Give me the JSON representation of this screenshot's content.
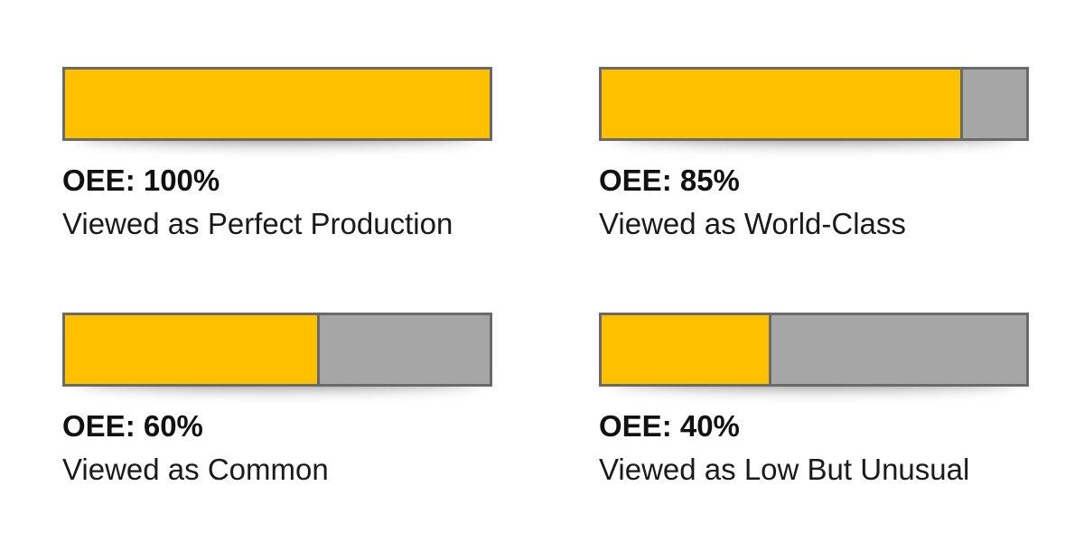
{
  "colors": {
    "fill": "#ffc000",
    "remainder": "#a6a6a6",
    "border": "#6a6a6a"
  },
  "chart_data": {
    "type": "bar",
    "orientation": "horizontal-progress",
    "items": [
      {
        "oee_label": "OEE: 100%",
        "description": "Viewed as Perfect Production",
        "value": 100
      },
      {
        "oee_label": "OEE: 85%",
        "description": "Viewed as World-Class",
        "value": 85
      },
      {
        "oee_label": "OEE: 60%",
        "description": "Viewed as Common",
        "value": 60
      },
      {
        "oee_label": "OEE: 40%",
        "description": "Viewed as Low But Unusual",
        "value": 40
      }
    ],
    "xlim": [
      0,
      100
    ]
  }
}
